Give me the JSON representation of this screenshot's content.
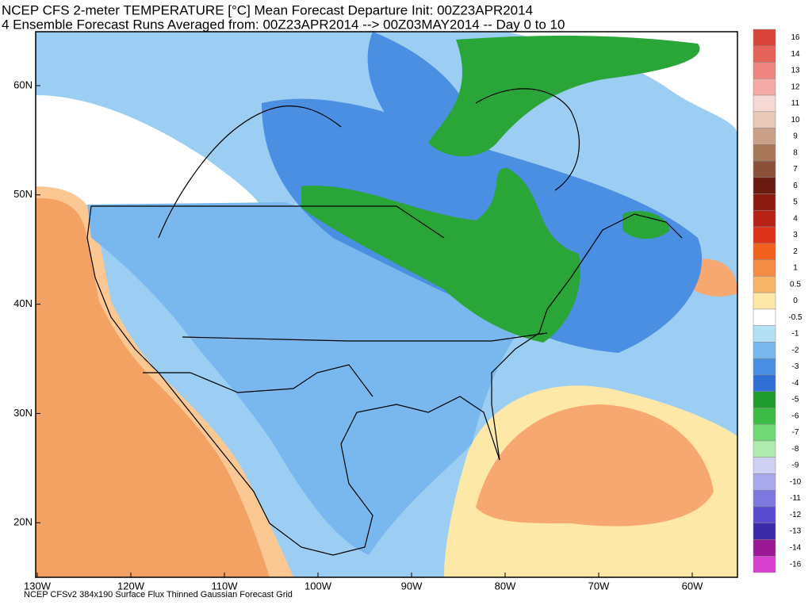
{
  "header": {
    "title_line1": "NCEP CFS 2-meter TEMPERATURE [°C] Mean Forecast Departure Init: 00Z23APR2014",
    "title_line2": "4 Ensemble Forecast Runs Averaged from: 00Z23APR2014 --> 00Z03MAY2014 -- Day 0 to 10"
  },
  "map": {
    "lat_labels": [
      "60N",
      "50N",
      "40N",
      "30N",
      "20N"
    ],
    "lon_labels": [
      "130W",
      "120W",
      "110W",
      "100W",
      "90W",
      "80W",
      "70W",
      "60W"
    ]
  },
  "colorbar": {
    "labels": [
      "16",
      "14",
      "13",
      "12",
      "11",
      "10",
      "9",
      "8",
      "7",
      "6",
      "5",
      "4",
      "3",
      "2",
      "1",
      "0.5",
      "0",
      "-0.5",
      "-1",
      "-2",
      "-3",
      "-4",
      "-5",
      "-6",
      "-7",
      "-8",
      "-9",
      "-10",
      "-11",
      "-12",
      "-13",
      "-14",
      "-16"
    ],
    "colors": [
      "#d8433a",
      "#e4625a",
      "#ee8580",
      "#f6aaa8",
      "#f6d8d4",
      "#eac8b8",
      "#caa088",
      "#a87658",
      "#8a5038",
      "#6a1a10",
      "#8c1a10",
      "#b82216",
      "#dc3218",
      "#f2601e",
      "#f48c46",
      "#f8b468",
      "#fde8a8",
      "#ffffff",
      "#b4e0f6",
      "#78b8ee",
      "#4a8fe2",
      "#2f6fd6",
      "#1f9a2c",
      "#3cbc46",
      "#70d874",
      "#b0ecb0",
      "#d0d0f4",
      "#a8a8ec",
      "#7c78e0",
      "#5a4ad0",
      "#3a2aa8",
      "#9a1894",
      "#d840d0"
    ]
  },
  "footer": {
    "text": "NCEP CFSv2 384x190 Surface Flux Thinned Gaussian Forecast Grid"
  }
}
